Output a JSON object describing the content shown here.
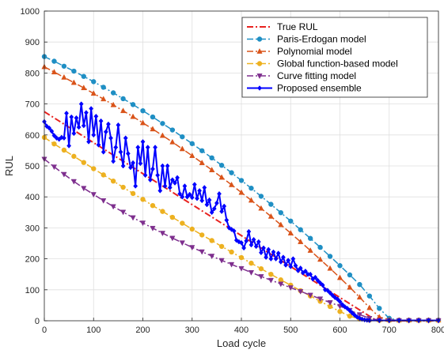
{
  "chart_data": {
    "type": "line",
    "title": "",
    "xlabel": "Load cycle",
    "ylabel": "RUL",
    "xlim": [
      0,
      800
    ],
    "ylim": [
      0,
      1000
    ],
    "xticks": [
      0,
      100,
      200,
      300,
      400,
      500,
      600,
      700,
      800
    ],
    "yticks": [
      0,
      100,
      200,
      300,
      400,
      500,
      600,
      700,
      800,
      900,
      1000
    ],
    "grid": true,
    "legend_position": "top-right",
    "series": [
      {
        "name": "True RUL",
        "color": "#e8221f",
        "line": "dashdot",
        "marker": "none",
        "width": 2,
        "points": [
          [
            0,
            675
          ],
          [
            675,
            0
          ],
          [
            800,
            0
          ]
        ]
      },
      {
        "name": "Paris-Erdogan model",
        "color": "#1f8fc4",
        "line": "dashdot",
        "marker": "circle",
        "width": 1.5,
        "points": [
          [
            0,
            853
          ],
          [
            20,
            838
          ],
          [
            40,
            822
          ],
          [
            60,
            806
          ],
          [
            80,
            789
          ],
          [
            100,
            772
          ],
          [
            120,
            754
          ],
          [
            140,
            736
          ],
          [
            160,
            717
          ],
          [
            180,
            698
          ],
          [
            200,
            678
          ],
          [
            220,
            658
          ],
          [
            240,
            637
          ],
          [
            260,
            616
          ],
          [
            280,
            594
          ],
          [
            300,
            572
          ],
          [
            320,
            549
          ],
          [
            340,
            526
          ],
          [
            360,
            502
          ],
          [
            380,
            478
          ],
          [
            400,
            453
          ],
          [
            420,
            428
          ],
          [
            440,
            402
          ],
          [
            460,
            376
          ],
          [
            480,
            349
          ],
          [
            500,
            322
          ],
          [
            520,
            294
          ],
          [
            540,
            266
          ],
          [
            560,
            237
          ],
          [
            580,
            208
          ],
          [
            600,
            178
          ],
          [
            620,
            148
          ],
          [
            640,
            117
          ],
          [
            660,
            80
          ],
          [
            680,
            40
          ],
          [
            700,
            8
          ],
          [
            720,
            2
          ],
          [
            740,
            2
          ],
          [
            760,
            2
          ],
          [
            780,
            2
          ],
          [
            800,
            2
          ]
        ]
      },
      {
        "name": "Polynomial model",
        "color": "#d95319",
        "line": "dashdot",
        "marker": "triangle-up",
        "width": 1.5,
        "points": [
          [
            0,
            820
          ],
          [
            20,
            803
          ],
          [
            40,
            786
          ],
          [
            60,
            769
          ],
          [
            80,
            752
          ],
          [
            100,
            734
          ],
          [
            120,
            716
          ],
          [
            140,
            697
          ],
          [
            160,
            678
          ],
          [
            180,
            659
          ],
          [
            200,
            639
          ],
          [
            220,
            619
          ],
          [
            240,
            598
          ],
          [
            260,
            577
          ],
          [
            280,
            555
          ],
          [
            300,
            533
          ],
          [
            320,
            510
          ],
          [
            340,
            487
          ],
          [
            360,
            463
          ],
          [
            380,
            439
          ],
          [
            400,
            414
          ],
          [
            420,
            389
          ],
          [
            440,
            363
          ],
          [
            460,
            337
          ],
          [
            480,
            310
          ],
          [
            500,
            283
          ],
          [
            520,
            255
          ],
          [
            540,
            227
          ],
          [
            560,
            198
          ],
          [
            580,
            169
          ],
          [
            600,
            139
          ],
          [
            620,
            108
          ],
          [
            640,
            76
          ],
          [
            660,
            42
          ],
          [
            680,
            12
          ],
          [
            700,
            3
          ],
          [
            720,
            2
          ],
          [
            740,
            2
          ],
          [
            760,
            2
          ],
          [
            780,
            2
          ],
          [
            800,
            2
          ]
        ]
      },
      {
        "name": "Global function-based model",
        "color": "#edb120",
        "line": "dashdot",
        "marker": "circle",
        "width": 1.5,
        "points": [
          [
            0,
            592
          ],
          [
            20,
            571
          ],
          [
            40,
            551
          ],
          [
            60,
            531
          ],
          [
            80,
            511
          ],
          [
            100,
            491
          ],
          [
            120,
            471
          ],
          [
            140,
            451
          ],
          [
            160,
            431
          ],
          [
            180,
            411
          ],
          [
            200,
            392
          ],
          [
            220,
            372
          ],
          [
            240,
            353
          ],
          [
            260,
            334
          ],
          [
            280,
            315
          ],
          [
            300,
            296
          ],
          [
            320,
            277
          ],
          [
            340,
            259
          ],
          [
            360,
            240
          ],
          [
            380,
            222
          ],
          [
            400,
            204
          ],
          [
            420,
            186
          ],
          [
            440,
            168
          ],
          [
            460,
            150
          ],
          [
            480,
            132
          ],
          [
            500,
            115
          ],
          [
            520,
            97
          ],
          [
            540,
            80
          ],
          [
            560,
            63
          ],
          [
            580,
            46
          ],
          [
            600,
            30
          ],
          [
            620,
            15
          ],
          [
            640,
            6
          ],
          [
            660,
            2
          ],
          [
            680,
            1
          ],
          [
            700,
            1
          ],
          [
            720,
            1
          ],
          [
            740,
            1
          ],
          [
            760,
            1
          ],
          [
            780,
            1
          ],
          [
            800,
            1
          ]
        ]
      },
      {
        "name": "Curve fitting model",
        "color": "#7e2f8e",
        "line": "dashdot",
        "marker": "triangle-down",
        "width": 1.5,
        "points": [
          [
            0,
            522
          ],
          [
            20,
            497
          ],
          [
            40,
            473
          ],
          [
            60,
            450
          ],
          [
            80,
            428
          ],
          [
            100,
            408
          ],
          [
            120,
            388
          ],
          [
            140,
            369
          ],
          [
            160,
            351
          ],
          [
            180,
            333
          ],
          [
            200,
            316
          ],
          [
            220,
            299
          ],
          [
            240,
            283
          ],
          [
            260,
            267
          ],
          [
            280,
            252
          ],
          [
            300,
            237
          ],
          [
            320,
            223
          ],
          [
            340,
            209
          ],
          [
            360,
            195
          ],
          [
            380,
            182
          ],
          [
            400,
            169
          ],
          [
            420,
            156
          ],
          [
            440,
            143
          ],
          [
            460,
            131
          ],
          [
            480,
            119
          ],
          [
            500,
            107
          ],
          [
            520,
            95
          ],
          [
            540,
            83
          ],
          [
            560,
            71
          ],
          [
            580,
            59
          ],
          [
            600,
            47
          ],
          [
            620,
            34
          ],
          [
            640,
            20
          ],
          [
            660,
            8
          ],
          [
            680,
            2
          ],
          [
            700,
            1
          ],
          [
            720,
            1
          ],
          [
            740,
            1
          ],
          [
            760,
            1
          ],
          [
            780,
            1
          ],
          [
            800,
            1
          ]
        ]
      },
      {
        "name": "Proposed ensemble",
        "color": "#0000ff",
        "line": "solid",
        "marker": "diamond",
        "width": 2,
        "points": [
          [
            0,
            643
          ],
          [
            5,
            628
          ],
          [
            10,
            622
          ],
          [
            15,
            612
          ],
          [
            20,
            598
          ],
          [
            25,
            590
          ],
          [
            30,
            586
          ],
          [
            35,
            592
          ],
          [
            40,
            590
          ],
          [
            45,
            670
          ],
          [
            50,
            565
          ],
          [
            55,
            658
          ],
          [
            60,
            605
          ],
          [
            65,
            655
          ],
          [
            70,
            625
          ],
          [
            75,
            700
          ],
          [
            80,
            630
          ],
          [
            85,
            672
          ],
          [
            90,
            578
          ],
          [
            95,
            685
          ],
          [
            100,
            600
          ],
          [
            105,
            660
          ],
          [
            110,
            568
          ],
          [
            115,
            645
          ],
          [
            120,
            545
          ],
          [
            125,
            610
          ],
          [
            130,
            635
          ],
          [
            135,
            590
          ],
          [
            140,
            515
          ],
          [
            145,
            560
          ],
          [
            150,
            632
          ],
          [
            155,
            545
          ],
          [
            160,
            500
          ],
          [
            165,
            590
          ],
          [
            170,
            540
          ],
          [
            175,
            495
          ],
          [
            180,
            510
          ],
          [
            185,
            435
          ],
          [
            190,
            560
          ],
          [
            195,
            508
          ],
          [
            200,
            578
          ],
          [
            205,
            470
          ],
          [
            210,
            560
          ],
          [
            215,
            455
          ],
          [
            220,
            490
          ],
          [
            225,
            560
          ],
          [
            230,
            470
          ],
          [
            235,
            420
          ],
          [
            240,
            500
          ],
          [
            245,
            435
          ],
          [
            250,
            500
          ],
          [
            255,
            430
          ],
          [
            260,
            455
          ],
          [
            265,
            445
          ],
          [
            270,
            462
          ],
          [
            275,
            410
          ],
          [
            280,
            400
          ],
          [
            285,
            435
          ],
          [
            290,
            400
          ],
          [
            295,
            408
          ],
          [
            300,
            398
          ],
          [
            305,
            440
          ],
          [
            310,
            395
          ],
          [
            315,
            420
          ],
          [
            320,
            388
          ],
          [
            325,
            430
          ],
          [
            330,
            375
          ],
          [
            335,
            390
          ],
          [
            340,
            350
          ],
          [
            345,
            362
          ],
          [
            350,
            380
          ],
          [
            355,
            410
          ],
          [
            360,
            353
          ],
          [
            365,
            370
          ],
          [
            370,
            325
          ],
          [
            375,
            300
          ],
          [
            380,
            295
          ],
          [
            385,
            290
          ],
          [
            390,
            260
          ],
          [
            395,
            255
          ],
          [
            400,
            252
          ],
          [
            405,
            235
          ],
          [
            410,
            258
          ],
          [
            415,
            288
          ],
          [
            420,
            245
          ],
          [
            425,
            262
          ],
          [
            430,
            240
          ],
          [
            435,
            255
          ],
          [
            440,
            220
          ],
          [
            445,
            235
          ],
          [
            450,
            205
          ],
          [
            455,
            230
          ],
          [
            460,
            200
          ],
          [
            465,
            222
          ],
          [
            470,
            200
          ],
          [
            475,
            218
          ],
          [
            480,
            190
          ],
          [
            485,
            205
          ],
          [
            490,
            180
          ],
          [
            495,
            195
          ],
          [
            500,
            175
          ],
          [
            505,
            200
          ],
          [
            510,
            178
          ],
          [
            515,
            162
          ],
          [
            520,
            170
          ],
          [
            525,
            155
          ],
          [
            530,
            160
          ],
          [
            535,
            150
          ],
          [
            540,
            150
          ],
          [
            545,
            135
          ],
          [
            550,
            140
          ],
          [
            555,
            130
          ],
          [
            560,
            122
          ],
          [
            565,
            115
          ],
          [
            570,
            100
          ],
          [
            575,
            98
          ],
          [
            580,
            90
          ],
          [
            585,
            82
          ],
          [
            590,
            75
          ],
          [
            595,
            70
          ],
          [
            600,
            62
          ],
          [
            605,
            52
          ],
          [
            610,
            45
          ],
          [
            615,
            40
          ],
          [
            620,
            33
          ],
          [
            625,
            25
          ],
          [
            630,
            18
          ],
          [
            635,
            12
          ],
          [
            640,
            8
          ],
          [
            645,
            5
          ],
          [
            650,
            3
          ],
          [
            655,
            2
          ],
          [
            660,
            1
          ],
          [
            680,
            1
          ],
          [
            700,
            1
          ],
          [
            720,
            1
          ],
          [
            740,
            1
          ],
          [
            760,
            1
          ],
          [
            780,
            1
          ],
          [
            800,
            1
          ]
        ]
      }
    ]
  }
}
